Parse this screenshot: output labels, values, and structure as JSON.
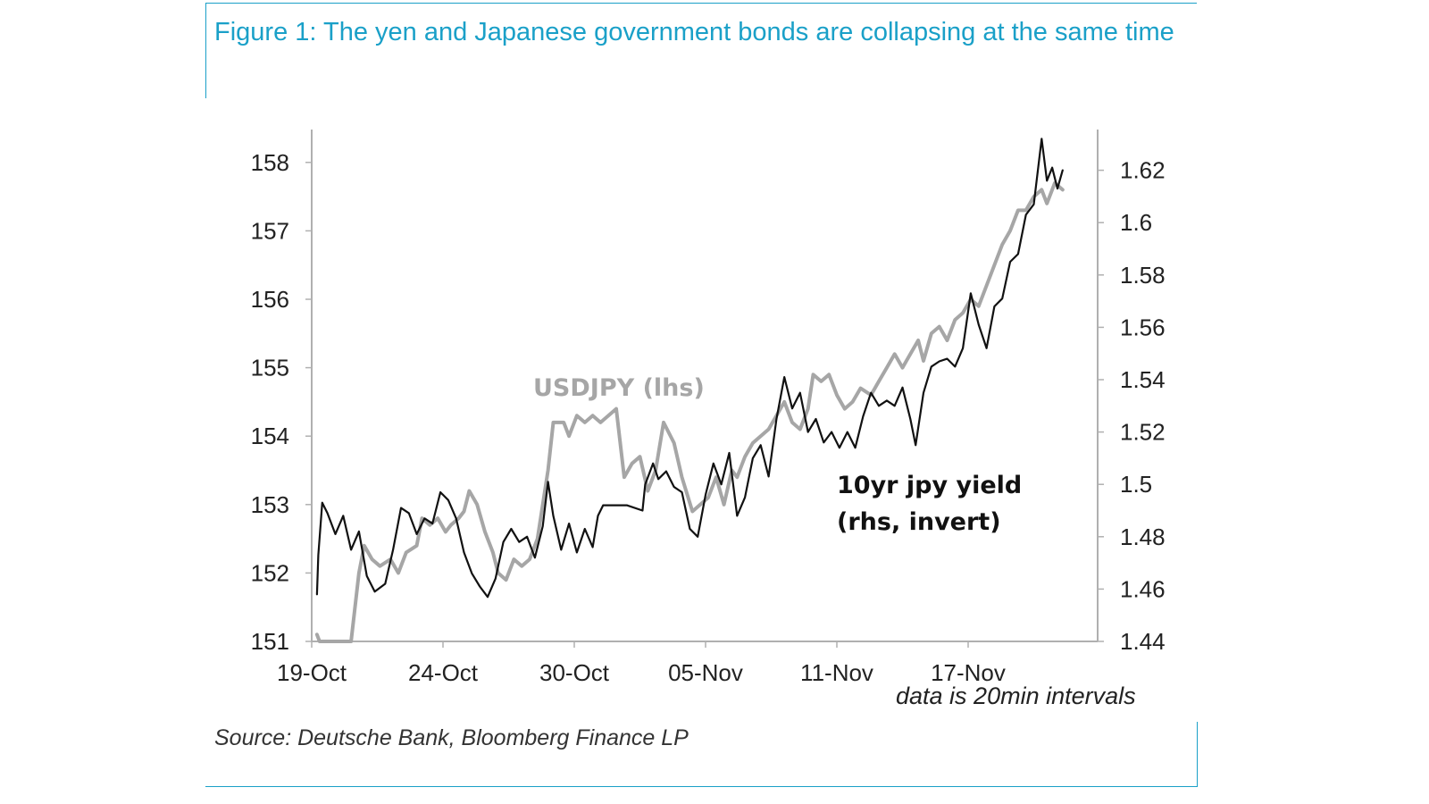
{
  "figure": {
    "title": "Figure 1: The yen and Japanese government bonds are collapsing at the same time",
    "source": "Source: Deutsche Bank, Bloomberg Finance LP",
    "note": "data is 20min intervals",
    "colors": {
      "accent": "#1aa0c8",
      "usdjpy": "#a6a6a6",
      "jgb": "#111111",
      "axis": "#b0b0b0"
    }
  },
  "chart_data": {
    "type": "line",
    "title": "Figure 1: The yen and Japanese government bonds are collapsing at the same time",
    "xlabel": "",
    "ylabel": "",
    "x_ticks": [
      "19-Oct",
      "24-Oct",
      "30-Oct",
      "05-Nov",
      "11-Nov",
      "17-Nov"
    ],
    "x_range_days": [
      0,
      30
    ],
    "y_left": {
      "ticks": [
        "151",
        "152",
        "153",
        "154",
        "155",
        "156",
        "157",
        "158"
      ],
      "range": [
        151,
        158.35
      ]
    },
    "y_right": {
      "ticks": [
        "1.44",
        "1.46",
        "1.48",
        "1.5",
        "1.52",
        "1.54",
        "1.56",
        "1.58",
        "1.6",
        "1.62"
      ],
      "range": [
        1.44,
        1.6285
      ],
      "inverted_note": "rhs, invert"
    },
    "series": [
      {
        "name": "USDJPY (lhs)",
        "label": "USDJPY (lhs)",
        "axis": "left",
        "color": "#a6a6a6",
        "x": [
          0.2,
          0.3,
          1.5,
          1.8,
          2.0,
          2.3,
          2.6,
          3.0,
          3.3,
          3.6,
          4.0,
          4.2,
          4.5,
          4.8,
          5.1,
          5.3,
          5.6,
          5.8,
          6.0,
          6.3,
          6.6,
          6.9,
          7.1,
          7.4,
          7.7,
          8.0,
          8.3,
          8.6,
          8.8,
          9.0,
          9.2,
          9.6,
          9.8,
          10.1,
          10.4,
          10.7,
          11.0,
          11.3,
          11.6,
          11.9,
          12.2,
          12.5,
          12.8,
          13.1,
          13.4,
          13.8,
          14.1,
          14.5,
          14.8,
          15.1,
          15.4,
          15.7,
          16.0,
          16.2,
          16.5,
          16.8,
          17.1,
          17.4,
          17.7,
          18.0,
          18.3,
          18.6,
          18.9,
          19.1,
          19.4,
          19.7,
          20.0,
          20.3,
          20.6,
          20.9,
          21.3,
          21.6,
          21.9,
          22.2,
          22.5,
          22.8,
          23.1,
          23.3,
          23.6,
          23.9,
          24.2,
          24.5,
          24.8,
          25.1,
          25.4,
          25.7,
          26.0,
          26.3,
          26.6,
          26.9,
          27.2,
          27.5,
          27.8,
          28.0,
          28.3,
          28.6
        ],
        "values": [
          151.1,
          151.0,
          151.0,
          152.0,
          152.4,
          152.2,
          152.1,
          152.2,
          152.0,
          152.3,
          152.4,
          152.8,
          152.7,
          152.8,
          152.6,
          152.7,
          152.8,
          152.9,
          153.2,
          153.0,
          152.6,
          152.3,
          152.0,
          151.9,
          152.2,
          152.1,
          152.2,
          152.5,
          153.0,
          153.5,
          154.2,
          154.2,
          154.0,
          154.3,
          154.2,
          154.3,
          154.2,
          154.3,
          154.4,
          153.4,
          153.6,
          153.7,
          153.2,
          153.5,
          154.2,
          153.9,
          153.4,
          152.9,
          153.0,
          153.1,
          153.4,
          153.0,
          153.5,
          153.4,
          153.7,
          153.9,
          154.0,
          154.1,
          154.3,
          154.5,
          154.2,
          154.1,
          154.4,
          154.9,
          154.8,
          154.9,
          154.6,
          154.4,
          154.5,
          154.7,
          154.6,
          154.8,
          155.0,
          155.2,
          155.0,
          155.2,
          155.4,
          155.1,
          155.5,
          155.6,
          155.4,
          155.7,
          155.8,
          156.0,
          155.9,
          156.2,
          156.5,
          156.8,
          157.0,
          157.3,
          157.3,
          157.5,
          157.6,
          157.4,
          157.7,
          157.6
        ]
      },
      {
        "name": "10yr jpy yield (rhs, invert)",
        "label_line1": "10yr  jpy yield",
        "label_line2": "(rhs, invert)",
        "axis": "right",
        "color": "#111111",
        "x": [
          0.2,
          0.25,
          0.4,
          0.6,
          0.9,
          1.2,
          1.5,
          1.8,
          2.1,
          2.4,
          2.8,
          3.1,
          3.4,
          3.7,
          4.0,
          4.3,
          4.6,
          4.9,
          5.2,
          5.5,
          5.8,
          6.1,
          6.4,
          6.7,
          7.0,
          7.3,
          7.6,
          7.9,
          8.2,
          8.5,
          8.8,
          9.0,
          9.2,
          9.5,
          9.8,
          10.1,
          10.4,
          10.7,
          10.9,
          11.1,
          12.0,
          12.6,
          12.7,
          13.0,
          13.2,
          13.5,
          13.8,
          14.1,
          14.4,
          14.7,
          15.0,
          15.3,
          15.6,
          15.9,
          16.2,
          16.5,
          16.8,
          17.1,
          17.4,
          17.7,
          18.0,
          18.3,
          18.6,
          18.9,
          19.2,
          19.5,
          19.8,
          20.1,
          20.4,
          20.7,
          21.0,
          21.3,
          21.6,
          21.9,
          22.2,
          22.5,
          22.8,
          23.0,
          23.3,
          23.6,
          23.9,
          24.2,
          24.5,
          24.8,
          25.1,
          25.4,
          25.7,
          26.0,
          26.3,
          26.6,
          26.9,
          27.2,
          27.5,
          27.8,
          28.0,
          28.2,
          28.4,
          28.6
        ],
        "values": [
          1.458,
          1.473,
          1.493,
          1.489,
          1.481,
          1.488,
          1.475,
          1.482,
          1.465,
          1.459,
          1.462,
          1.475,
          1.491,
          1.489,
          1.481,
          1.487,
          1.485,
          1.497,
          1.494,
          1.487,
          1.474,
          1.466,
          1.461,
          1.457,
          1.464,
          1.478,
          1.483,
          1.478,
          1.48,
          1.472,
          1.484,
          1.501,
          1.488,
          1.475,
          1.485,
          1.474,
          1.483,
          1.476,
          1.488,
          1.492,
          1.492,
          1.49,
          1.5,
          1.508,
          1.502,
          1.505,
          1.499,
          1.497,
          1.483,
          1.48,
          1.496,
          1.508,
          1.5,
          1.512,
          1.488,
          1.495,
          1.51,
          1.515,
          1.503,
          1.525,
          1.541,
          1.529,
          1.535,
          1.52,
          1.525,
          1.516,
          1.52,
          1.514,
          1.52,
          1.514,
          1.526,
          1.535,
          1.53,
          1.532,
          1.53,
          1.537,
          1.525,
          1.515,
          1.535,
          1.545,
          1.547,
          1.548,
          1.545,
          1.552,
          1.573,
          1.561,
          1.552,
          1.568,
          1.571,
          1.585,
          1.588,
          1.603,
          1.607,
          1.632,
          1.616,
          1.621,
          1.613,
          1.62
        ]
      }
    ]
  }
}
